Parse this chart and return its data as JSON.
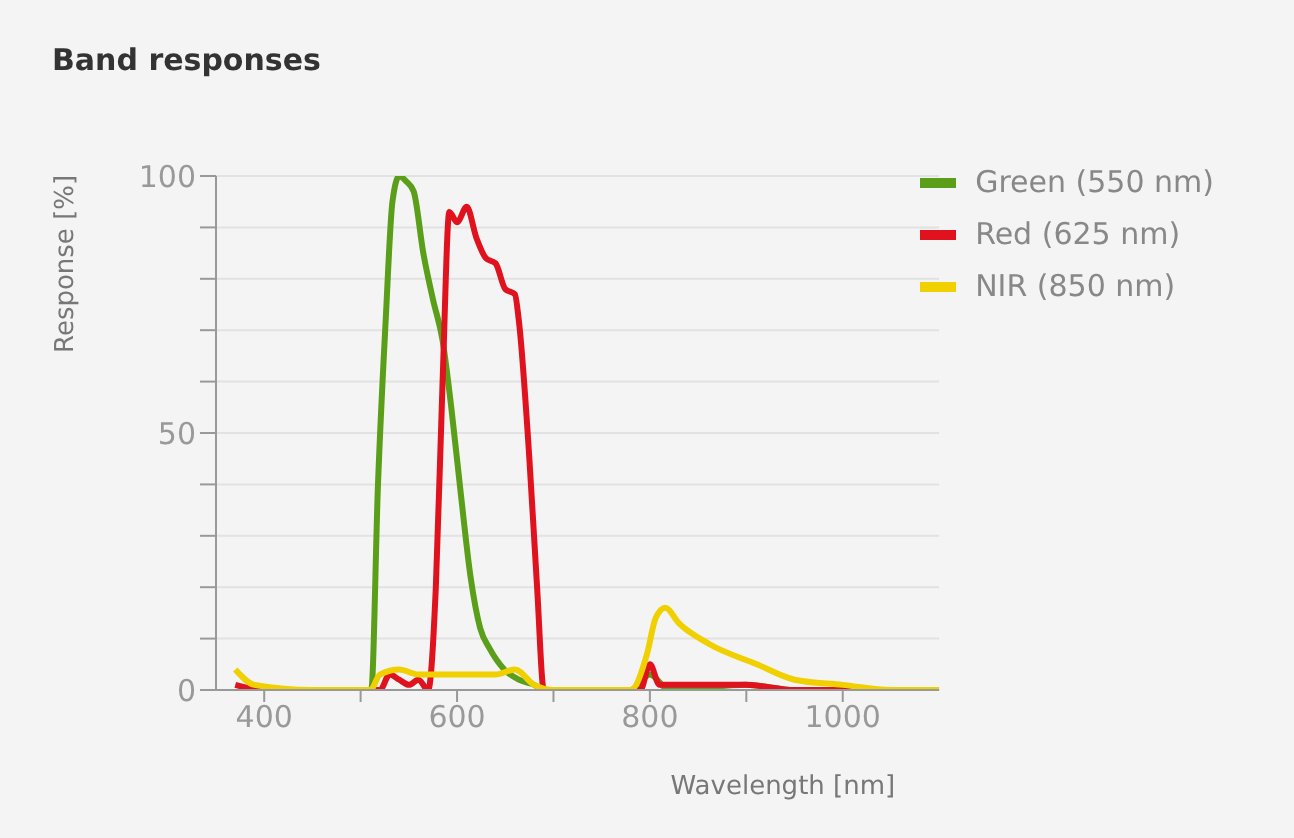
{
  "chart_data": {
    "type": "line",
    "title": "Band responses",
    "xlabel": "Wavelength [nm]",
    "ylabel": "Response [%]",
    "xlim": [
      350,
      1100
    ],
    "xticks": [
      400,
      {
        "value": 500,
        "label": null
      },
      600,
      {
        "value": 700,
        "label": null
      },
      800,
      {
        "value": 900,
        "label": null
      },
      1000
    ],
    "ylim": [
      0,
      100
    ],
    "yticks": [
      0,
      {
        "value": 10,
        "label": null
      },
      {
        "value": 20,
        "label": null
      },
      {
        "value": 30,
        "label": null
      },
      {
        "value": 40,
        "label": null
      },
      50,
      {
        "value": 60,
        "label": null
      },
      {
        "value": 70,
        "label": null
      },
      {
        "value": 80,
        "label": null
      },
      {
        "value": 90,
        "label": null
      },
      100
    ],
    "grid": "y",
    "legend": "top right",
    "marker": "none",
    "line_style": "solid",
    "series": [
      {
        "name": "Green (550 nm)",
        "color": "#5a9e1a",
        "x": [
          505,
          511,
          518,
          526,
          533,
          540,
          547,
          555,
          565,
          575,
          585,
          594,
          604,
          614,
          624,
          634,
          649,
          664,
          680,
          690,
          780,
          800,
          820,
          900,
          950,
          1100
        ],
        "values": [
          0,
          0,
          40,
          72,
          95,
          100,
          99,
          97,
          85,
          76,
          68,
          55,
          38,
          22,
          12,
          8,
          4,
          2,
          1,
          0,
          0,
          3,
          0,
          1,
          0,
          0
        ]
      },
      {
        "name": "Red (625 nm)",
        "color": "#e0121e",
        "x": [
          370,
          400,
          520,
          530,
          540,
          550,
          560,
          570,
          578,
          585,
          592,
          600,
          610,
          620,
          630,
          640,
          650,
          660,
          664,
          675,
          683,
          690,
          780,
          790,
          800,
          810,
          850,
          900,
          950,
          1100
        ],
        "values": [
          1,
          0,
          0,
          3,
          2,
          1,
          2,
          0,
          20,
          60,
          93,
          91,
          94,
          88,
          84,
          83,
          78,
          77,
          72,
          45,
          20,
          0,
          0,
          0,
          5,
          1,
          1,
          1,
          0,
          0
        ]
      },
      {
        "name": "NIR (850 nm)",
        "color": "#f0d000",
        "x": [
          370,
          390,
          450,
          510,
          520,
          540,
          560,
          600,
          640,
          660,
          680,
          700,
          780,
          797,
          806,
          816,
          830,
          861,
          911,
          950,
          1000,
          1050,
          1100
        ],
        "values": [
          4,
          1,
          0,
          0,
          3,
          4,
          3,
          3,
          3,
          4,
          1,
          0,
          0,
          7,
          14,
          16,
          13,
          9,
          5,
          2,
          1,
          0,
          0
        ]
      }
    ]
  }
}
